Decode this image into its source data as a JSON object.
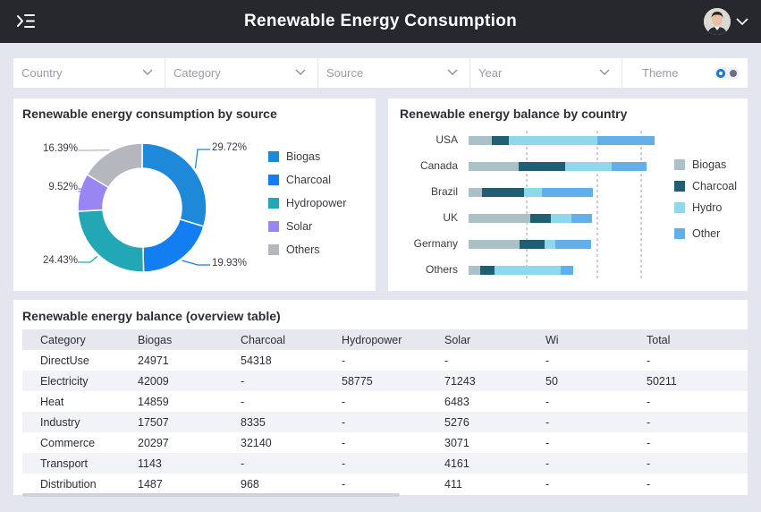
{
  "header": {
    "title": "Renewable Energy Consumption"
  },
  "filters": [
    {
      "label": "Country"
    },
    {
      "label": "Category"
    },
    {
      "label": "Source"
    },
    {
      "label": "Year"
    }
  ],
  "theme": {
    "label": "Theme"
  },
  "colors": {
    "biogas": "#1e88d9",
    "charcoal": "#137df2",
    "hydropower": "#21a8b4",
    "solar": "#9a86f2",
    "others": "#b4b7bd",
    "bar_biogas": "#a9c1c7",
    "bar_charcoal": "#205f73",
    "bar_hydro": "#8fd7ea",
    "bar_other": "#63afe9"
  },
  "donut": {
    "title": "Renewable energy consumption by source",
    "legend": [
      "Biogas",
      "Charcoal",
      "Hydropower",
      "Solar",
      "Others"
    ],
    "chart_data": {
      "type": "pie",
      "title": "Renewable energy consumption by source",
      "labels": [
        "Biogas",
        "Charcoal",
        "Hydropower",
        "Solar",
        "Others"
      ],
      "values": [
        29.72,
        19.93,
        24.43,
        9.52,
        16.39
      ],
      "value_labels": [
        "29.72%",
        "19.93%",
        "24.43%",
        "9.52%",
        "16.39%"
      ],
      "legend_position": "right"
    }
  },
  "balance": {
    "title": "Renewable energy balance by country",
    "legend": [
      "Biogas",
      "Charcoal",
      "Hydro",
      "Other"
    ],
    "chart_data": {
      "type": "bar",
      "orientation": "horizontal",
      "stacked": true,
      "title": "Renewable energy balance by country",
      "categories": [
        "USA",
        "Canada",
        "Brazil",
        "UK",
        "Germany",
        "Others"
      ],
      "series": [
        {
          "name": "Biogas",
          "values": [
            26,
            56,
            15,
            69,
            57,
            13
          ]
        },
        {
          "name": "Charcoal",
          "values": [
            19,
            52,
            47,
            23,
            28,
            16
          ]
        },
        {
          "name": "Hydro",
          "values": [
            99,
            52,
            20,
            23,
            12,
            74
          ]
        },
        {
          "name": "Other",
          "values": [
            64,
            39,
            57,
            23,
            40,
            14
          ]
        }
      ],
      "legend_position": "right"
    }
  },
  "table": {
    "title": "Renewable energy balance (overview table)",
    "columns": [
      "Category",
      "Biogas",
      "Charcoal",
      "Hydropower",
      "Solar",
      "Wi",
      "Total"
    ],
    "rows": [
      [
        "DirectUse",
        "24971",
        "54318",
        "-",
        "-",
        "-",
        "-"
      ],
      [
        "Electricity",
        "42009",
        "-",
        "58775",
        "71243",
        "50",
        "50211"
      ],
      [
        "Heat",
        "14859",
        "-",
        "-",
        "6483",
        "-",
        "-"
      ],
      [
        "Industry",
        "17507",
        "8335",
        "-",
        "5276",
        "-",
        "-"
      ],
      [
        "Commerce",
        "20297",
        "32140",
        "-",
        "3071",
        "-",
        "-"
      ],
      [
        "Transport",
        "1143",
        "-",
        "-",
        "4161",
        "-",
        "-"
      ],
      [
        "Distribution",
        "1487",
        "968",
        "-",
        "411",
        "-",
        "-"
      ]
    ]
  }
}
